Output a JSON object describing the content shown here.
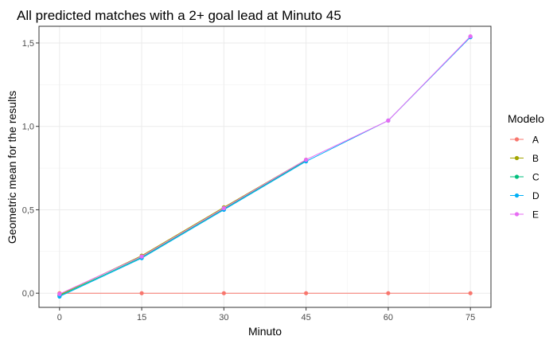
{
  "chart_data": {
    "type": "line",
    "title": "All predicted matches with a 2+ goal lead at Minuto 45",
    "xlabel": "Minuto",
    "ylabel": "Geometric mean for the results",
    "x_ticks": [
      0,
      15,
      30,
      45,
      60,
      75
    ],
    "y_ticks": [
      0,
      0.5,
      1.0,
      1.5
    ],
    "y_tick_labels": [
      "0,0",
      "0,5",
      "1,0",
      "1,5"
    ],
    "xlim": [
      -3.75,
      78.75
    ],
    "ylim": [
      -0.085,
      1.6
    ],
    "grid": true,
    "legend": {
      "title": "Modelo",
      "position": "right"
    },
    "series": [
      {
        "name": "A",
        "color": "#F8766D",
        "x": [
          0,
          15,
          30,
          45,
          60,
          75
        ],
        "values": [
          0,
          0,
          0,
          0,
          0,
          0
        ]
      },
      {
        "name": "B",
        "color": "#A3A500",
        "x": [
          0,
          15,
          30,
          45
        ],
        "values": [
          -0.01,
          0.225,
          0.515,
          0.8
        ]
      },
      {
        "name": "C",
        "color": "#00BF7D",
        "x": [
          0,
          15,
          30,
          45
        ],
        "values": [
          -0.015,
          0.215,
          0.505,
          0.795
        ]
      },
      {
        "name": "D",
        "color": "#00B0F6",
        "x": [
          0,
          15,
          30,
          45,
          60,
          75
        ],
        "values": [
          -0.02,
          0.21,
          0.5,
          0.79,
          1.035,
          1.535
        ]
      },
      {
        "name": "E",
        "color": "#E76BF3",
        "x": [
          0,
          15,
          30,
          45,
          60,
          75
        ],
        "values": [
          -0.005,
          0.22,
          0.51,
          0.8,
          1.035,
          1.54
        ]
      }
    ]
  }
}
